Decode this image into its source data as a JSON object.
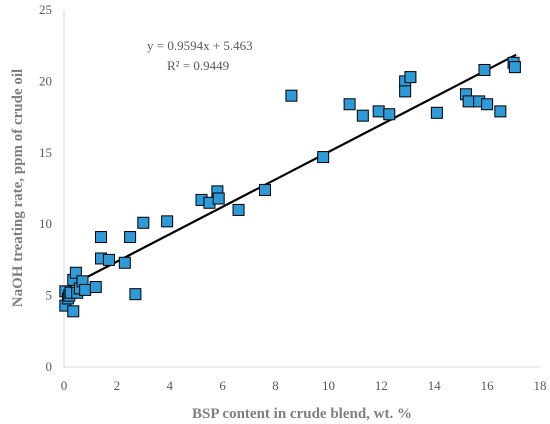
{
  "chart_data": {
    "type": "scatter",
    "xlabel": "BSP content in crude blend, wt. %",
    "ylabel": "NaOH treating rate, ppm of crude oil",
    "xlim": [
      0,
      18
    ],
    "ylim": [
      0,
      25
    ],
    "x_ticks": [
      "0",
      "2",
      "4",
      "6",
      "8",
      "10",
      "12",
      "14",
      "16",
      "18"
    ],
    "y_ticks": [
      "0",
      "5",
      "10",
      "15",
      "20",
      "25"
    ],
    "grid": false,
    "legend": "none",
    "marker_color": "#2e9ad6",
    "marker_edge_color": "#000000",
    "trendline": {
      "slope": 0.9594,
      "intercept": 5.463,
      "x_range": [
        0,
        17.1
      ],
      "color": "#000000"
    },
    "annotations": {
      "equation": "y = 0.9594x + 5.463",
      "r_squared": "R² = 0.9449"
    },
    "points": [
      [
        0.05,
        5.3
      ],
      [
        0.05,
        4.3
      ],
      [
        0.15,
        4.8
      ],
      [
        0.2,
        5.0
      ],
      [
        0.25,
        5.2
      ],
      [
        0.35,
        3.9
      ],
      [
        0.35,
        6.1
      ],
      [
        0.45,
        6.6
      ],
      [
        0.5,
        5.2
      ],
      [
        0.6,
        5.5
      ],
      [
        0.7,
        6.0
      ],
      [
        0.8,
        5.4
      ],
      [
        1.2,
        5.6
      ],
      [
        1.4,
        9.1
      ],
      [
        1.4,
        7.6
      ],
      [
        1.7,
        7.5
      ],
      [
        2.3,
        7.3
      ],
      [
        2.5,
        9.1
      ],
      [
        2.7,
        5.1
      ],
      [
        3.0,
        10.1
      ],
      [
        3.9,
        10.2
      ],
      [
        5.2,
        11.7
      ],
      [
        5.5,
        11.5
      ],
      [
        5.8,
        12.3
      ],
      [
        5.85,
        11.8
      ],
      [
        6.6,
        11.0
      ],
      [
        7.6,
        12.4
      ],
      [
        8.6,
        19.0
      ],
      [
        9.8,
        14.7
      ],
      [
        10.8,
        18.4
      ],
      [
        11.3,
        17.6
      ],
      [
        11.9,
        17.9
      ],
      [
        12.3,
        17.7
      ],
      [
        12.9,
        20.0
      ],
      [
        12.9,
        19.3
      ],
      [
        13.1,
        20.3
      ],
      [
        14.1,
        17.8
      ],
      [
        15.2,
        19.1
      ],
      [
        15.3,
        18.6
      ],
      [
        15.7,
        18.6
      ],
      [
        15.9,
        20.8
      ],
      [
        16.0,
        18.4
      ],
      [
        16.5,
        17.9
      ],
      [
        17.0,
        21.3
      ],
      [
        17.05,
        21.0
      ]
    ]
  }
}
